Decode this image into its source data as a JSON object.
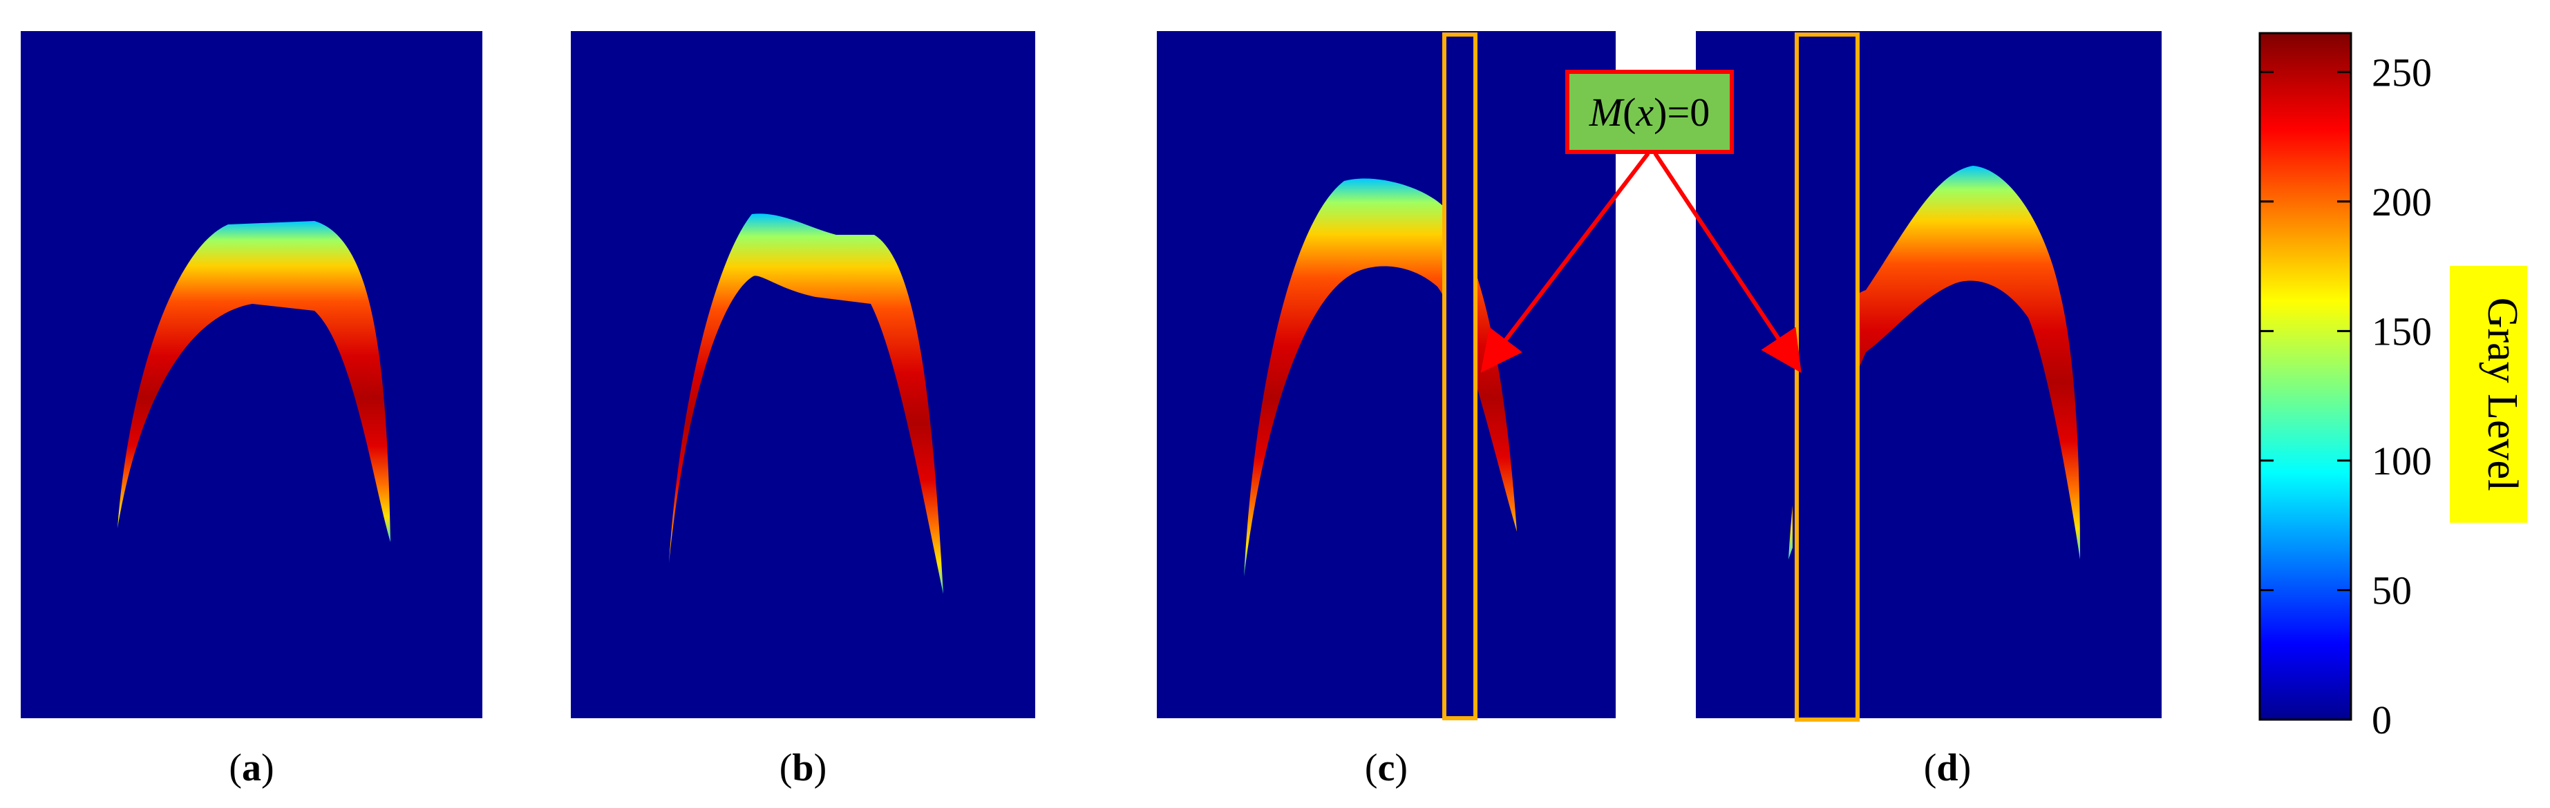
{
  "figure": {
    "panels": [
      {
        "id": "a",
        "label": "a"
      },
      {
        "id": "b",
        "label": "b"
      },
      {
        "id": "c",
        "label": "c"
      },
      {
        "id": "d",
        "label": "d"
      }
    ],
    "callout": {
      "math_symbol": "M",
      "variable": "x",
      "equals_text": "=0"
    },
    "colorbar": {
      "title": "Gray Level",
      "ticks": [
        "0",
        "50",
        "100",
        "150",
        "200",
        "250"
      ],
      "tick_values": [
        0,
        50,
        100,
        150,
        200,
        250
      ],
      "range": [
        0,
        265
      ],
      "colormap": "jet"
    },
    "colors": {
      "background": "#00008F",
      "highlight_box": "#FFB000",
      "callout_fill": "#78C850",
      "callout_border": "#FF0000",
      "arrow": "#FF0000",
      "colorbar_title_highlight": "#FFFF00"
    }
  }
}
